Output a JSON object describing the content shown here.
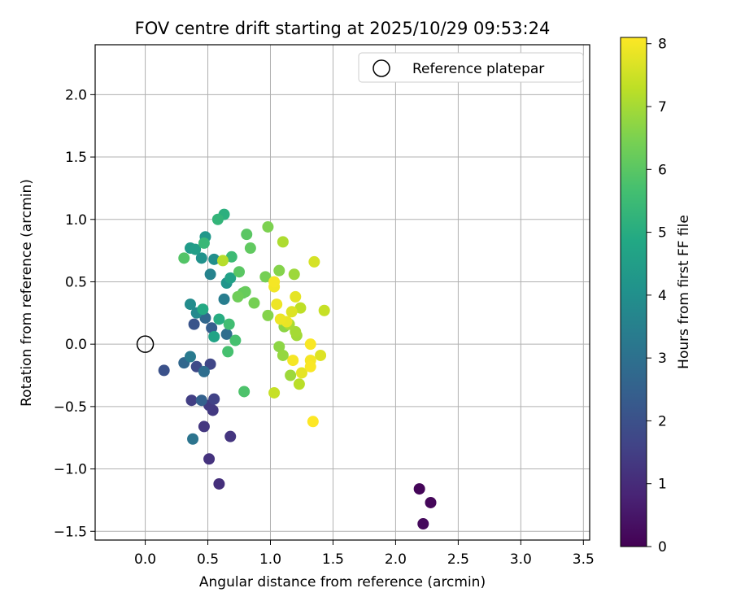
{
  "chart_data": {
    "type": "scatter",
    "title": "FOV centre drift starting at 2025/10/29 09:53:24",
    "xlabel": "Angular distance from reference (arcmin)",
    "ylabel": "Rotation from reference (arcmin)",
    "xlim": [
      -0.4,
      3.55
    ],
    "ylim": [
      -1.57,
      2.4
    ],
    "xticks": [
      0.0,
      0.5,
      1.0,
      1.5,
      2.0,
      2.5,
      3.0,
      3.5
    ],
    "xtick_labels": [
      "0.0",
      "0.5",
      "1.0",
      "1.5",
      "2.0",
      "2.5",
      "3.0",
      "3.5"
    ],
    "yticks": [
      -1.5,
      -1.0,
      -0.5,
      0.0,
      0.5,
      1.0,
      1.5,
      2.0
    ],
    "ytick_labels": [
      "−1.5",
      "−1.0",
      "−0.5",
      "0.0",
      "0.5",
      "1.0",
      "1.5",
      "2.0"
    ],
    "grid": true,
    "legend": {
      "placement": "top-right",
      "entries": [
        "Reference platepar"
      ]
    },
    "reference_point": {
      "x": 0.0,
      "y": 0.0,
      "label": "Reference platepar"
    },
    "colorbar": {
      "label": "Hours from first FF file",
      "min": 0,
      "max": 8.1,
      "ticks": [
        0,
        1,
        2,
        3,
        4,
        5,
        6,
        7,
        8
      ],
      "tick_labels": [
        "0",
        "1",
        "2",
        "3",
        "4",
        "5",
        "6",
        "7",
        "8"
      ],
      "colormap": "viridis"
    },
    "points": [
      {
        "x": 2.19,
        "y": -1.16,
        "c": 0.1
      },
      {
        "x": 2.28,
        "y": -1.27,
        "c": 0.15
      },
      {
        "x": 2.22,
        "y": -1.44,
        "c": 0.2
      },
      {
        "x": 0.59,
        "y": -1.12,
        "c": 1.1
      },
      {
        "x": 0.51,
        "y": -0.92,
        "c": 1.2
      },
      {
        "x": 0.68,
        "y": -0.74,
        "c": 1.25
      },
      {
        "x": 0.47,
        "y": -0.66,
        "c": 1.3
      },
      {
        "x": 0.54,
        "y": -0.53,
        "c": 1.35
      },
      {
        "x": 0.51,
        "y": -0.49,
        "c": 1.4
      },
      {
        "x": 0.37,
        "y": -0.45,
        "c": 1.5
      },
      {
        "x": 0.55,
        "y": -0.44,
        "c": 1.6
      },
      {
        "x": 0.52,
        "y": -0.16,
        "c": 1.7
      },
      {
        "x": 0.41,
        "y": -0.18,
        "c": 1.8
      },
      {
        "x": 0.15,
        "y": -0.21,
        "c": 2.0
      },
      {
        "x": 0.39,
        "y": 0.16,
        "c": 2.1
      },
      {
        "x": 0.53,
        "y": 0.13,
        "c": 2.4
      },
      {
        "x": 0.48,
        "y": 0.21,
        "c": 2.7
      },
      {
        "x": 0.65,
        "y": 0.08,
        "c": 2.9
      },
      {
        "x": 0.31,
        "y": -0.15,
        "c": 2.7
      },
      {
        "x": 0.45,
        "y": -0.45,
        "c": 2.5
      },
      {
        "x": 0.47,
        "y": -0.22,
        "c": 2.9
      },
      {
        "x": 0.38,
        "y": -0.76,
        "c": 3.1
      },
      {
        "x": 0.36,
        "y": -0.1,
        "c": 3.3
      },
      {
        "x": 0.63,
        "y": 0.36,
        "c": 3.4
      },
      {
        "x": 0.52,
        "y": 0.56,
        "c": 3.6
      },
      {
        "x": 0.41,
        "y": 0.25,
        "c": 3.8
      },
      {
        "x": 0.36,
        "y": 0.32,
        "c": 3.9
      },
      {
        "x": 0.55,
        "y": 0.68,
        "c": 4.0
      },
      {
        "x": 0.45,
        "y": 0.69,
        "c": 4.1
      },
      {
        "x": 0.65,
        "y": 0.49,
        "c": 4.2
      },
      {
        "x": 0.48,
        "y": 0.86,
        "c": 4.3
      },
      {
        "x": 0.36,
        "y": 0.77,
        "c": 4.4
      },
      {
        "x": 0.4,
        "y": 0.76,
        "c": 4.5
      },
      {
        "x": 0.68,
        "y": 0.53,
        "c": 4.6
      },
      {
        "x": 0.55,
        "y": 0.06,
        "c": 4.7
      },
      {
        "x": 0.46,
        "y": 0.28,
        "c": 4.9
      },
      {
        "x": 0.59,
        "y": 0.2,
        "c": 5.0
      },
      {
        "x": 0.63,
        "y": 1.04,
        "c": 5.1
      },
      {
        "x": 0.58,
        "y": 1.0,
        "c": 5.3
      },
      {
        "x": 0.69,
        "y": 0.7,
        "c": 5.5
      },
      {
        "x": 0.47,
        "y": 0.81,
        "c": 5.4
      },
      {
        "x": 0.67,
        "y": 0.16,
        "c": 5.6
      },
      {
        "x": 0.72,
        "y": 0.03,
        "c": 5.7
      },
      {
        "x": 0.66,
        "y": -0.06,
        "c": 5.7
      },
      {
        "x": 0.79,
        "y": -0.38,
        "c": 5.8
      },
      {
        "x": 0.31,
        "y": 0.69,
        "c": 5.9
      },
      {
        "x": 0.75,
        "y": 0.58,
        "c": 6.0
      },
      {
        "x": 0.81,
        "y": 0.88,
        "c": 6.0
      },
      {
        "x": 0.84,
        "y": 0.77,
        "c": 6.1
      },
      {
        "x": 0.78,
        "y": 0.41,
        "c": 6.1
      },
      {
        "x": 0.8,
        "y": 0.42,
        "c": 6.2
      },
      {
        "x": 0.74,
        "y": 0.38,
        "c": 6.3
      },
      {
        "x": 0.87,
        "y": 0.33,
        "c": 6.4
      },
      {
        "x": 0.96,
        "y": 0.54,
        "c": 6.4
      },
      {
        "x": 0.98,
        "y": 0.94,
        "c": 6.5
      },
      {
        "x": 0.98,
        "y": 0.23,
        "c": 6.6
      },
      {
        "x": 1.07,
        "y": 0.59,
        "c": 6.6
      },
      {
        "x": 1.07,
        "y": -0.02,
        "c": 6.7
      },
      {
        "x": 1.11,
        "y": 0.14,
        "c": 6.7
      },
      {
        "x": 1.1,
        "y": -0.09,
        "c": 6.8
      },
      {
        "x": 1.16,
        "y": -0.25,
        "c": 6.9
      },
      {
        "x": 1.19,
        "y": 0.56,
        "c": 6.9
      },
      {
        "x": 1.21,
        "y": 0.07,
        "c": 6.95
      },
      {
        "x": 1.2,
        "y": 0.1,
        "c": 7.0
      },
      {
        "x": 1.15,
        "y": 0.16,
        "c": 7.05
      },
      {
        "x": 1.1,
        "y": 0.82,
        "c": 7.1
      },
      {
        "x": 0.62,
        "y": 0.67,
        "c": 7.2
      },
      {
        "x": 1.23,
        "y": -0.32,
        "c": 7.25
      },
      {
        "x": 1.24,
        "y": 0.29,
        "c": 7.3
      },
      {
        "x": 1.03,
        "y": -0.39,
        "c": 7.4
      },
      {
        "x": 1.43,
        "y": 0.27,
        "c": 7.4
      },
      {
        "x": 1.35,
        "y": 0.66,
        "c": 7.6
      },
      {
        "x": 1.4,
        "y": -0.09,
        "c": 7.7
      },
      {
        "x": 1.17,
        "y": 0.26,
        "c": 7.7
      },
      {
        "x": 1.2,
        "y": 0.38,
        "c": 7.8
      },
      {
        "x": 1.25,
        "y": -0.23,
        "c": 7.8
      },
      {
        "x": 1.13,
        "y": 0.18,
        "c": 7.85
      },
      {
        "x": 1.08,
        "y": 0.2,
        "c": 7.9
      },
      {
        "x": 1.05,
        "y": 0.32,
        "c": 7.9
      },
      {
        "x": 1.03,
        "y": 0.46,
        "c": 7.95
      },
      {
        "x": 1.03,
        "y": 0.5,
        "c": 8.0
      },
      {
        "x": 1.18,
        "y": -0.13,
        "c": 8.0
      },
      {
        "x": 1.32,
        "y": -0.13,
        "c": 8.0
      },
      {
        "x": 1.32,
        "y": 0.0,
        "c": 8.05
      },
      {
        "x": 1.32,
        "y": -0.18,
        "c": 8.05
      },
      {
        "x": 1.34,
        "y": -0.62,
        "c": 8.1
      }
    ]
  }
}
